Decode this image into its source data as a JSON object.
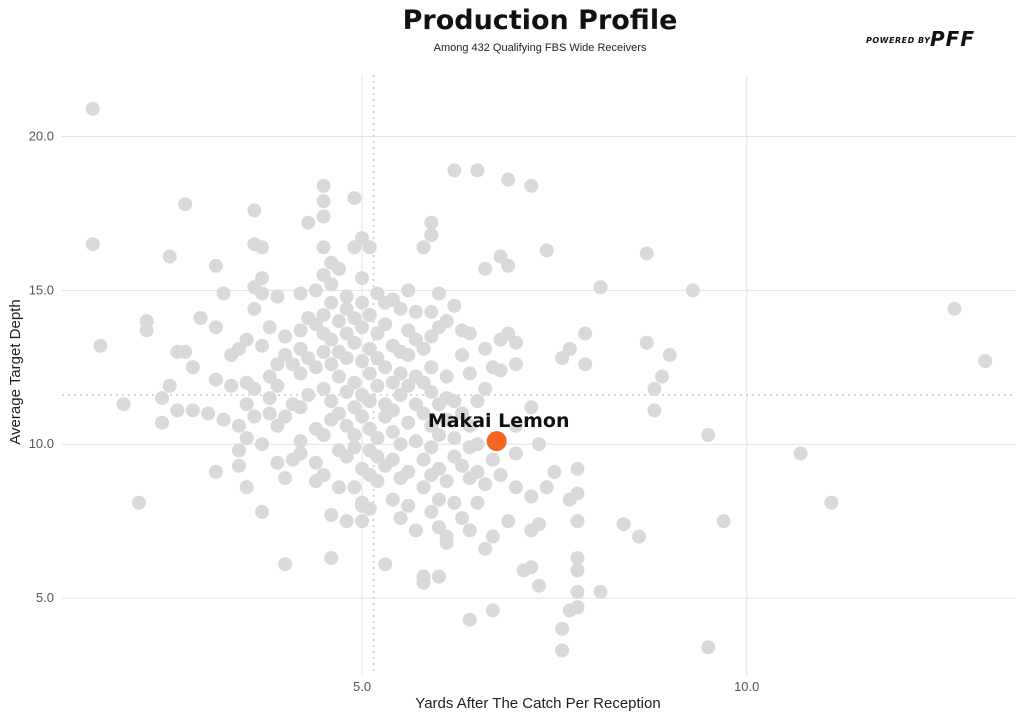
{
  "chart_data": {
    "type": "scatter",
    "title": "Production Profile",
    "subtitle": "Among 432 Qualifying FBS Wide Receivers",
    "xlabel": "Yards After The Catch Per Reception",
    "ylabel": "Average Target Depth",
    "xlim": [
      1.1,
      13.5
    ],
    "ylim": [
      2.5,
      22.0
    ],
    "xticks": [
      5.0,
      10.0
    ],
    "yticks": [
      5.0,
      10.0,
      15.0,
      20.0
    ],
    "x_tick_labels": [
      "5.0",
      "10.0"
    ],
    "y_tick_labels": [
      "5.0",
      "10.0",
      "15.0",
      "20.0"
    ],
    "grid": true,
    "reference_lines": {
      "x": 5.15,
      "y": 11.6
    },
    "highlight": {
      "name": "Makai Lemon",
      "x": 6.75,
      "y": 10.1,
      "color": "#f26522"
    },
    "point_color": "#d9d9d9",
    "points": [
      [
        1.5,
        20.9
      ],
      [
        1.5,
        16.5
      ],
      [
        1.6,
        13.2
      ],
      [
        1.9,
        11.3
      ],
      [
        2.1,
        8.1
      ],
      [
        2.2,
        14.0
      ],
      [
        2.2,
        13.7
      ],
      [
        2.4,
        11.5
      ],
      [
        2.4,
        10.7
      ],
      [
        2.5,
        11.9
      ],
      [
        2.5,
        16.1
      ],
      [
        2.6,
        13.0
      ],
      [
        2.6,
        11.1
      ],
      [
        2.7,
        13.0
      ],
      [
        2.7,
        17.8
      ],
      [
        2.8,
        11.1
      ],
      [
        2.8,
        12.5
      ],
      [
        2.9,
        14.1
      ],
      [
        3.0,
        11.0
      ],
      [
        3.1,
        9.1
      ],
      [
        3.1,
        13.8
      ],
      [
        3.1,
        12.1
      ],
      [
        3.1,
        15.8
      ],
      [
        3.2,
        14.9
      ],
      [
        3.2,
        10.8
      ],
      [
        3.3,
        11.9
      ],
      [
        3.3,
        12.9
      ],
      [
        3.4,
        9.3
      ],
      [
        3.4,
        13.1
      ],
      [
        3.4,
        9.8
      ],
      [
        3.4,
        10.6
      ],
      [
        3.5,
        13.4
      ],
      [
        3.5,
        11.3
      ],
      [
        3.5,
        8.6
      ],
      [
        3.5,
        10.2
      ],
      [
        3.5,
        12.0
      ],
      [
        3.6,
        16.5
      ],
      [
        3.6,
        17.6
      ],
      [
        3.6,
        14.4
      ],
      [
        3.6,
        15.1
      ],
      [
        3.6,
        11.8
      ],
      [
        3.6,
        10.9
      ],
      [
        3.7,
        13.2
      ],
      [
        3.7,
        15.4
      ],
      [
        3.7,
        14.9
      ],
      [
        3.7,
        16.4
      ],
      [
        3.7,
        7.8
      ],
      [
        3.7,
        10.0
      ],
      [
        3.8,
        11.5
      ],
      [
        3.8,
        13.8
      ],
      [
        3.8,
        12.2
      ],
      [
        3.8,
        11.0
      ],
      [
        3.9,
        14.8
      ],
      [
        3.9,
        12.6
      ],
      [
        3.9,
        10.6
      ],
      [
        3.9,
        9.4
      ],
      [
        3.9,
        11.9
      ],
      [
        4.0,
        13.5
      ],
      [
        4.0,
        12.9
      ],
      [
        4.0,
        10.9
      ],
      [
        4.0,
        6.1
      ],
      [
        4.0,
        8.9
      ],
      [
        4.1,
        9.5
      ],
      [
        4.1,
        12.6
      ],
      [
        4.1,
        11.3
      ],
      [
        4.2,
        14.9
      ],
      [
        4.2,
        13.7
      ],
      [
        4.2,
        12.3
      ],
      [
        4.2,
        10.1
      ],
      [
        4.2,
        9.7
      ],
      [
        4.2,
        13.1
      ],
      [
        4.2,
        11.2
      ],
      [
        4.3,
        17.2
      ],
      [
        4.3,
        14.1
      ],
      [
        4.3,
        12.8
      ],
      [
        4.3,
        11.6
      ],
      [
        4.4,
        15.0
      ],
      [
        4.4,
        13.9
      ],
      [
        4.4,
        12.5
      ],
      [
        4.4,
        10.5
      ],
      [
        4.4,
        9.4
      ],
      [
        4.4,
        8.8
      ],
      [
        4.5,
        18.4
      ],
      [
        4.5,
        17.9
      ],
      [
        4.5,
        17.4
      ],
      [
        4.5,
        16.4
      ],
      [
        4.5,
        15.5
      ],
      [
        4.5,
        14.2
      ],
      [
        4.5,
        13.6
      ],
      [
        4.5,
        13.0
      ],
      [
        4.5,
        11.8
      ],
      [
        4.5,
        10.3
      ],
      [
        4.5,
        9.0
      ],
      [
        4.6,
        15.9
      ],
      [
        4.6,
        15.2
      ],
      [
        4.6,
        14.6
      ],
      [
        4.6,
        13.4
      ],
      [
        4.6,
        12.6
      ],
      [
        4.6,
        11.4
      ],
      [
        4.6,
        10.8
      ],
      [
        4.6,
        7.7
      ],
      [
        4.6,
        6.3
      ],
      [
        4.7,
        15.7
      ],
      [
        4.7,
        14.0
      ],
      [
        4.7,
        13.0
      ],
      [
        4.7,
        12.2
      ],
      [
        4.7,
        11.0
      ],
      [
        4.7,
        9.8
      ],
      [
        4.7,
        8.6
      ],
      [
        4.8,
        14.8
      ],
      [
        4.8,
        14.4
      ],
      [
        4.8,
        13.6
      ],
      [
        4.8,
        12.8
      ],
      [
        4.8,
        11.7
      ],
      [
        4.8,
        10.6
      ],
      [
        4.8,
        9.6
      ],
      [
        4.8,
        7.5
      ],
      [
        4.9,
        18.0
      ],
      [
        4.9,
        16.4
      ],
      [
        4.9,
        14.1
      ],
      [
        4.9,
        13.3
      ],
      [
        4.9,
        12.0
      ],
      [
        4.9,
        11.2
      ],
      [
        4.9,
        10.3
      ],
      [
        4.9,
        9.9
      ],
      [
        4.9,
        8.6
      ],
      [
        5.0,
        16.7
      ],
      [
        5.0,
        15.4
      ],
      [
        5.0,
        14.6
      ],
      [
        5.0,
        13.8
      ],
      [
        5.0,
        12.7
      ],
      [
        5.0,
        11.6
      ],
      [
        5.0,
        10.9
      ],
      [
        5.0,
        9.2
      ],
      [
        5.0,
        8.1
      ],
      [
        5.0,
        7.5
      ],
      [
        5.0,
        8.0
      ],
      [
        5.1,
        16.4
      ],
      [
        5.1,
        14.2
      ],
      [
        5.1,
        13.1
      ],
      [
        5.1,
        12.3
      ],
      [
        5.1,
        11.4
      ],
      [
        5.1,
        10.5
      ],
      [
        5.1,
        9.8
      ],
      [
        5.1,
        9.0
      ],
      [
        5.1,
        7.9
      ],
      [
        5.2,
        14.9
      ],
      [
        5.2,
        13.6
      ],
      [
        5.2,
        12.8
      ],
      [
        5.2,
        11.9
      ],
      [
        5.2,
        10.2
      ],
      [
        5.2,
        9.6
      ],
      [
        5.2,
        8.8
      ],
      [
        5.3,
        14.6
      ],
      [
        5.3,
        13.9
      ],
      [
        5.3,
        12.5
      ],
      [
        5.3,
        11.3
      ],
      [
        5.3,
        10.9
      ],
      [
        5.3,
        9.3
      ],
      [
        5.3,
        6.1
      ],
      [
        5.4,
        14.7
      ],
      [
        5.4,
        13.2
      ],
      [
        5.4,
        12.0
      ],
      [
        5.4,
        11.1
      ],
      [
        5.4,
        10.4
      ],
      [
        5.4,
        9.5
      ],
      [
        5.4,
        8.2
      ],
      [
        5.5,
        14.4
      ],
      [
        5.5,
        13.0
      ],
      [
        5.5,
        12.3
      ],
      [
        5.5,
        11.6
      ],
      [
        5.5,
        10.0
      ],
      [
        5.5,
        8.9
      ],
      [
        5.5,
        7.6
      ],
      [
        5.6,
        15.0
      ],
      [
        5.6,
        13.7
      ],
      [
        5.6,
        12.9
      ],
      [
        5.6,
        11.9
      ],
      [
        5.6,
        10.7
      ],
      [
        5.6,
        9.1
      ],
      [
        5.6,
        8.0
      ],
      [
        5.7,
        14.3
      ],
      [
        5.7,
        13.4
      ],
      [
        5.7,
        12.2
      ],
      [
        5.7,
        11.3
      ],
      [
        5.7,
        10.1
      ],
      [
        5.7,
        7.2
      ],
      [
        5.8,
        16.4
      ],
      [
        5.8,
        13.1
      ],
      [
        5.8,
        12.0
      ],
      [
        5.8,
        11.0
      ],
      [
        5.8,
        9.5
      ],
      [
        5.8,
        8.6
      ],
      [
        5.8,
        5.7
      ],
      [
        5.8,
        5.5
      ],
      [
        5.9,
        17.2
      ],
      [
        5.9,
        16.8
      ],
      [
        5.9,
        14.3
      ],
      [
        5.9,
        13.5
      ],
      [
        5.9,
        12.5
      ],
      [
        5.9,
        11.7
      ],
      [
        5.9,
        10.6
      ],
      [
        5.9,
        9.9
      ],
      [
        5.9,
        9.0
      ],
      [
        5.9,
        7.8
      ],
      [
        6.0,
        14.9
      ],
      [
        6.0,
        13.8
      ],
      [
        6.0,
        11.3
      ],
      [
        6.0,
        10.3
      ],
      [
        6.0,
        9.2
      ],
      [
        6.0,
        8.2
      ],
      [
        6.0,
        7.3
      ],
      [
        6.0,
        5.7
      ],
      [
        6.1,
        14.0
      ],
      [
        6.1,
        12.2
      ],
      [
        6.1,
        11.5
      ],
      [
        6.1,
        10.8
      ],
      [
        6.1,
        8.8
      ],
      [
        6.1,
        6.8
      ],
      [
        6.1,
        7.0
      ],
      [
        6.2,
        18.9
      ],
      [
        6.2,
        14.5
      ],
      [
        6.2,
        11.4
      ],
      [
        6.2,
        10.2
      ],
      [
        6.2,
        9.6
      ],
      [
        6.2,
        8.1
      ],
      [
        6.3,
        13.7
      ],
      [
        6.3,
        12.9
      ],
      [
        6.3,
        11.0
      ],
      [
        6.3,
        9.3
      ],
      [
        6.3,
        7.6
      ],
      [
        6.4,
        13.6
      ],
      [
        6.4,
        12.3
      ],
      [
        6.4,
        10.6
      ],
      [
        6.4,
        9.9
      ],
      [
        6.4,
        8.9
      ],
      [
        6.4,
        7.2
      ],
      [
        6.4,
        4.3
      ],
      [
        6.5,
        18.9
      ],
      [
        6.5,
        11.4
      ],
      [
        6.5,
        10.0
      ],
      [
        6.5,
        9.1
      ],
      [
        6.5,
        8.1
      ],
      [
        6.6,
        15.7
      ],
      [
        6.6,
        13.1
      ],
      [
        6.6,
        11.8
      ],
      [
        6.6,
        8.7
      ],
      [
        6.6,
        6.6
      ],
      [
        6.7,
        12.5
      ],
      [
        6.7,
        9.5
      ],
      [
        6.7,
        7.0
      ],
      [
        6.7,
        4.6
      ],
      [
        6.8,
        16.1
      ],
      [
        6.8,
        13.4
      ],
      [
        6.8,
        12.4
      ],
      [
        6.8,
        9.0
      ],
      [
        6.9,
        18.6
      ],
      [
        6.9,
        15.8
      ],
      [
        6.9,
        13.6
      ],
      [
        6.9,
        7.5
      ],
      [
        7.0,
        13.3
      ],
      [
        7.0,
        12.6
      ],
      [
        7.0,
        10.6
      ],
      [
        7.0,
        9.7
      ],
      [
        7.0,
        8.6
      ],
      [
        7.1,
        5.9
      ],
      [
        7.2,
        18.4
      ],
      [
        7.2,
        11.2
      ],
      [
        7.2,
        8.3
      ],
      [
        7.2,
        7.2
      ],
      [
        7.2,
        6.0
      ],
      [
        7.3,
        10.0
      ],
      [
        7.3,
        7.4
      ],
      [
        7.3,
        5.4
      ],
      [
        7.4,
        16.3
      ],
      [
        7.4,
        8.6
      ],
      [
        7.5,
        9.1
      ],
      [
        7.6,
        12.8
      ],
      [
        7.6,
        4.0
      ],
      [
        7.6,
        3.3
      ],
      [
        7.7,
        13.1
      ],
      [
        7.7,
        8.2
      ],
      [
        7.7,
        4.6
      ],
      [
        7.8,
        9.2
      ],
      [
        7.8,
        8.4
      ],
      [
        7.8,
        7.5
      ],
      [
        7.8,
        6.3
      ],
      [
        7.8,
        5.9
      ],
      [
        7.8,
        5.2
      ],
      [
        7.8,
        4.7
      ],
      [
        7.9,
        13.6
      ],
      [
        7.9,
        12.6
      ],
      [
        8.1,
        15.1
      ],
      [
        8.1,
        5.2
      ],
      [
        8.4,
        7.4
      ],
      [
        8.6,
        7.0
      ],
      [
        8.7,
        16.2
      ],
      [
        8.7,
        13.3
      ],
      [
        8.8,
        11.8
      ],
      [
        8.8,
        11.1
      ],
      [
        8.9,
        12.2
      ],
      [
        9.0,
        12.9
      ],
      [
        9.3,
        15.0
      ],
      [
        9.5,
        10.3
      ],
      [
        9.5,
        3.4
      ],
      [
        9.7,
        7.5
      ],
      [
        10.7,
        9.7
      ],
      [
        11.1,
        8.1
      ],
      [
        12.7,
        14.4
      ],
      [
        13.1,
        12.7
      ]
    ]
  }
}
